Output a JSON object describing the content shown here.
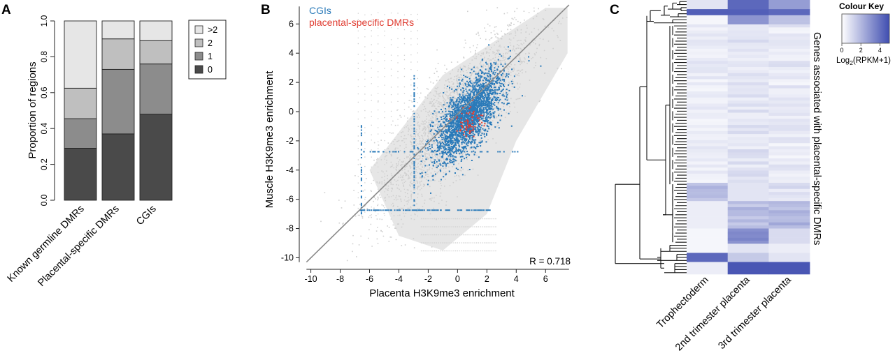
{
  "panels": {
    "a": "A",
    "b": "B",
    "c": "C"
  },
  "chart_data": [
    {
      "type": "bar",
      "stacked": true,
      "ylabel": "Proportion of regions",
      "ylim": [
        0,
        1
      ],
      "yticks": [
        "0.0",
        "0.2",
        "0.4",
        "0.6",
        "0.8",
        "1.0"
      ],
      "categories": [
        "Known germline DMRs",
        "Placental-specific DMRs",
        "CGIs"
      ],
      "series": [
        {
          "name": "0",
          "color": "#4a4a4a",
          "values": [
            0.29,
            0.37,
            0.48
          ]
        },
        {
          "name": "1",
          "color": "#8c8c8c",
          "values": [
            0.165,
            0.36,
            0.28
          ]
        },
        {
          "name": "2",
          "color": "#bfbfbf",
          "values": [
            0.17,
            0.17,
            0.13
          ]
        },
        {
          "name": ">2",
          "color": "#e6e6e6",
          "values": [
            0.375,
            0.1,
            0.11
          ]
        }
      ],
      "legend_order": [
        ">2",
        "2",
        "1",
        "0"
      ],
      "legend_position": "top-right"
    },
    {
      "type": "scatter",
      "xlabel": "Placenta H3K9me3 enrichment",
      "ylabel": "Muscle H3K9me3 enrichment",
      "xlim": [
        -10.6,
        7.8
      ],
      "ylim": [
        -10.6,
        7.4
      ],
      "xticks": [
        -10,
        -8,
        -6,
        -4,
        -2,
        0,
        2,
        4,
        6
      ],
      "yticks": [
        6,
        4,
        2,
        0,
        -2,
        -4,
        -6,
        -8,
        -10
      ],
      "annotation": "R = 0.718",
      "identity_line": true,
      "series": [
        {
          "name": "CGIs",
          "color": "#2a7ab9"
        },
        {
          "name": "placental-specific DMRs",
          "color": "#e03c31"
        }
      ],
      "background_color": "#d9d9d9"
    },
    {
      "type": "heatmap",
      "columns": [
        "Trophectoderm",
        "2nd trimester placenta",
        "3rd trimester placenta"
      ],
      "row_axis_label": "Genes associated with placental-specific DMRs",
      "color_key": {
        "title": "Colour Key",
        "label": "Log2(RPKM+1)",
        "label_base": "Log",
        "label_sub": "2",
        "label_rest": "(RPKM+1)",
        "ticks": [
          "0",
          "2",
          "4"
        ],
        "range": [
          0,
          5
        ],
        "low_color": "#ffffff",
        "high_color": "#3f4db0"
      }
    }
  ]
}
